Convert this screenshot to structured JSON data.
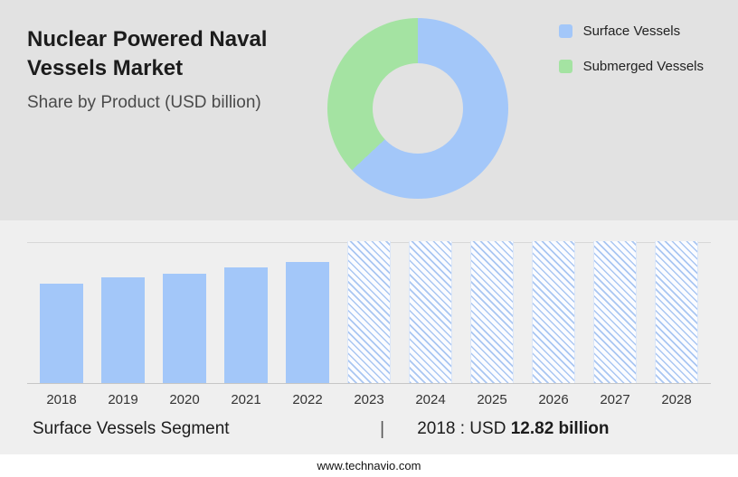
{
  "header": {
    "title": "Nuclear Powered Naval Vessels Market",
    "subtitle": "Share by Product (USD billion)"
  },
  "colors": {
    "top_bg": "#e2e2e2",
    "bottom_bg": "#efefef",
    "surface_blue": "#a3c7f9",
    "submerged_green": "#a4e3a2"
  },
  "legend": {
    "items": [
      {
        "label": "Surface Vessels",
        "color": "#a3c7f9"
      },
      {
        "label": "Submerged Vessels",
        "color": "#a4e3a2"
      }
    ]
  },
  "chart_data": [
    {
      "type": "pie",
      "donut": true,
      "title": "Share by Product (USD billion)",
      "labels": [
        "Surface Vessels",
        "Submerged Vessels"
      ],
      "values": [
        63,
        37
      ],
      "colors": [
        "#a3c7f9",
        "#a4e3a2"
      ],
      "legend_position": "top-right"
    },
    {
      "type": "bar",
      "categories": [
        "2018",
        "2019",
        "2020",
        "2021",
        "2022",
        "2023",
        "2024",
        "2025",
        "2026",
        "2027",
        "2028"
      ],
      "bars": [
        {
          "year": "2018",
          "value": 12.82,
          "style": "solid"
        },
        {
          "year": "2019",
          "value": 13.6,
          "style": "solid"
        },
        {
          "year": "2020",
          "value": 14.1,
          "style": "solid"
        },
        {
          "year": "2021",
          "value": 14.9,
          "style": "solid"
        },
        {
          "year": "2022",
          "value": 15.6,
          "style": "solid"
        },
        {
          "year": "2023",
          "value": null,
          "style": "hatched"
        },
        {
          "year": "2024",
          "value": null,
          "style": "hatched"
        },
        {
          "year": "2025",
          "value": null,
          "style": "hatched"
        },
        {
          "year": "2026",
          "value": null,
          "style": "hatched"
        },
        {
          "year": "2027",
          "value": null,
          "style": "hatched"
        },
        {
          "year": "2028",
          "value": null,
          "style": "hatched"
        }
      ],
      "bar_color": "#a3c7f9",
      "xlabel": "",
      "ylabel": "",
      "ylim": [
        0,
        18.3
      ],
      "grid": false,
      "legend_position": "none"
    }
  ],
  "caption": {
    "segment": "Surface Vessels Segment",
    "divider": "|",
    "value_label": "2018 : USD",
    "value": "12.82 billion"
  },
  "footer": {
    "text": "www.technavio.com"
  }
}
